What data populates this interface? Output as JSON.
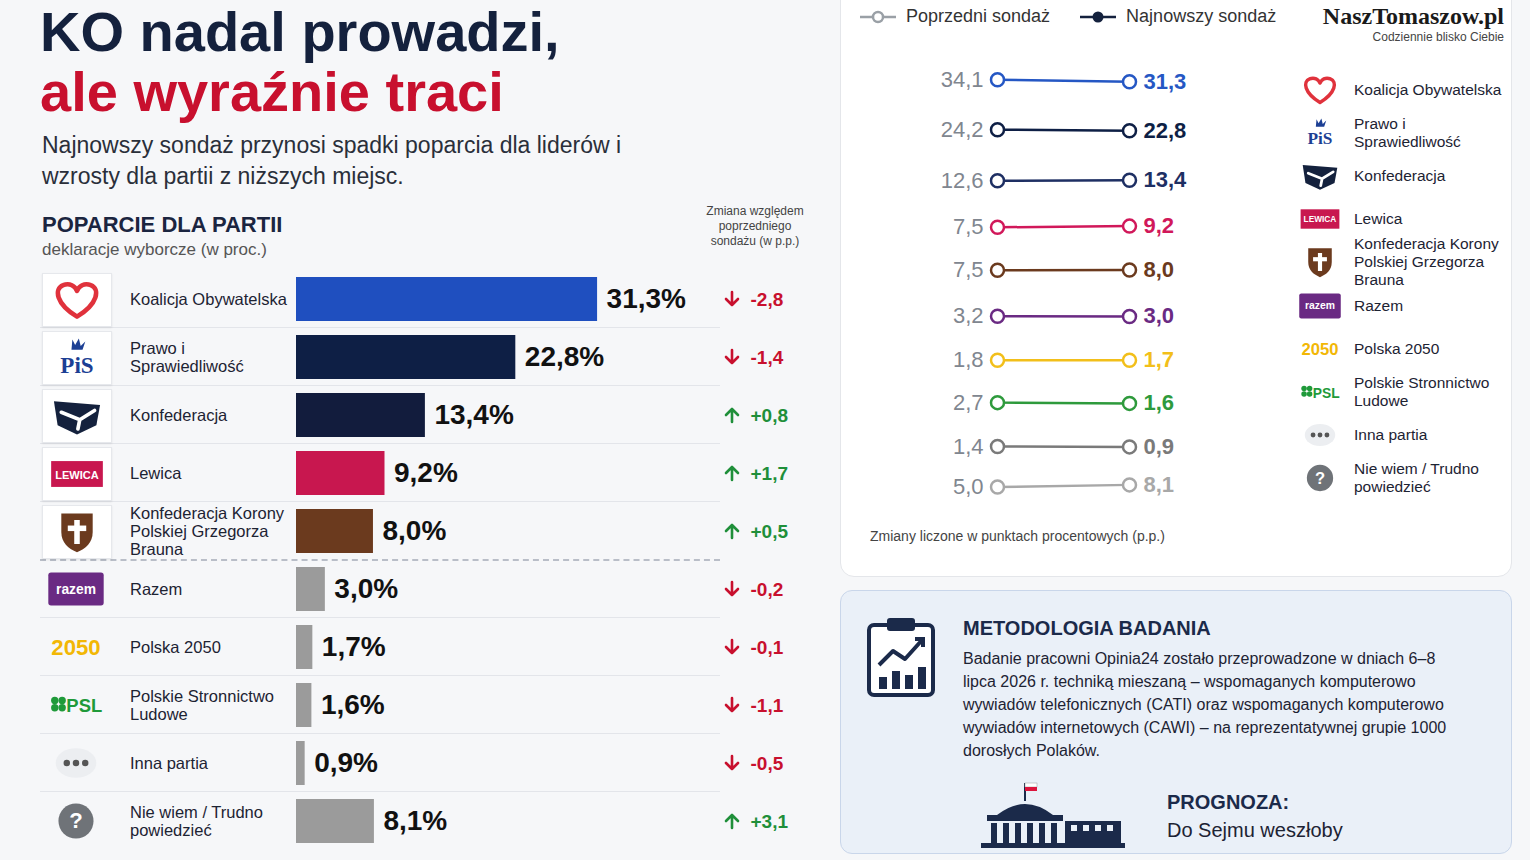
{
  "header": {
    "title_line1": "KO nadal prowadzi,",
    "title_line2": "ale wyraźnie traci",
    "subtitle": "Najnowszy sondaż przynosi spadki poparcia dla liderów i wzrosty dla partii z niższych miejsc."
  },
  "chart_data": [
    {
      "type": "bar",
      "title": "POPARCIE DLA PARTII",
      "subtitle": "deklaracje wyborcze (w proc.)",
      "orientation": "horizontal",
      "categories": [
        "Koalicja Obywatelska",
        "Prawo i Sprawiedliwość",
        "Konfederacja",
        "Lewica",
        "Konfederacja Korony Polskiej Grzegorza Brauna",
        "Razem",
        "Polska 2050",
        "Polskie Stronnictwo Ludowe",
        "Inna partia",
        "Nie wiem / Trudno powiedzieć"
      ],
      "icon_labels": [
        null,
        "PiS",
        null,
        "LEWICA",
        null,
        "razem",
        "2050",
        "PSL",
        null,
        "?"
      ],
      "values": [
        31.3,
        22.8,
        13.4,
        9.2,
        8.0,
        3.0,
        1.7,
        1.6,
        0.9,
        8.1
      ],
      "value_labels": [
        "31,3%",
        "22,8%",
        "13,4%",
        "9,2%",
        "8,0%",
        "3,0%",
        "1,7%",
        "1,6%",
        "0,9%",
        "8,1%"
      ],
      "colors": [
        "#1f4fbf",
        "#0e1f45",
        "#121c3d",
        "#c8174f",
        "#6b3a1e",
        "#9b9b9b",
        "#9b9b9b",
        "#9b9b9b",
        "#9b9b9b",
        "#9b9b9b"
      ],
      "change_title": "Zmiana względem poprzedniego sondażu (w p.p.)",
      "change": [
        -2.8,
        -1.4,
        0.8,
        1.7,
        0.5,
        -0.2,
        -0.1,
        -1.1,
        -0.5,
        3.1
      ],
      "change_labels": [
        "-2,8",
        "-1,4",
        "+0,8",
        "+1,7",
        "+0,5",
        "-0,2",
        "-0,1",
        "-1,1",
        "-0,5",
        "+3,1"
      ],
      "xlim": [
        0,
        42
      ],
      "data_labels": true,
      "tick_labels": "y",
      "grid": false
    },
    {
      "type": "line",
      "x": [
        "Poprzedni sondaż",
        "Najnowszy sondaż"
      ],
      "series": [
        {
          "name": "Koalicja Obywatelska",
          "color": "#2557c4",
          "values": [
            34.1,
            31.3
          ],
          "value_labels": [
            "34,1",
            "31,3"
          ]
        },
        {
          "name": "Prawo i Sprawiedliwość",
          "color": "#0e1f45",
          "values": [
            24.2,
            22.8
          ],
          "value_labels": [
            "24,2",
            "22,8"
          ]
        },
        {
          "name": "Konfederacja",
          "color": "#1e2f63",
          "values": [
            12.6,
            13.4
          ],
          "value_labels": [
            "12,6",
            "13,4"
          ]
        },
        {
          "name": "Lewica",
          "color": "#d1185a",
          "values": [
            7.5,
            9.2
          ],
          "value_labels": [
            "7,5",
            "9,2"
          ]
        },
        {
          "name": "Konfederacja Korony Polskiej Grzegorza Brauna",
          "color": "#6b3a1e",
          "values": [
            7.5,
            8.0
          ],
          "value_labels": [
            "7,5",
            "8,0"
          ]
        },
        {
          "name": "Razem",
          "color": "#6a2a83",
          "values": [
            3.2,
            3.0
          ],
          "value_labels": [
            "3,2",
            "3,0"
          ]
        },
        {
          "name": "Polska 2050",
          "color": "#f2bf1a",
          "values": [
            1.8,
            1.7
          ],
          "value_labels": [
            "1,8",
            "1,7"
          ]
        },
        {
          "name": "Polskie Stronnictwo Ludowe",
          "color": "#2e9a3c",
          "values": [
            2.7,
            1.6
          ],
          "value_labels": [
            "2,7",
            "1,6"
          ]
        },
        {
          "name": "Inna partia",
          "color": "#7a7a7a",
          "values": [
            1.4,
            0.9
          ],
          "value_labels": [
            "1,4",
            "0,9"
          ]
        },
        {
          "name": "Nie wiem / Trudno powiedzieć",
          "color": "#a8a8a8",
          "values": [
            5.0,
            8.1
          ],
          "value_labels": [
            "5,0",
            "8,1"
          ]
        }
      ],
      "ylim": [
        0,
        36
      ],
      "legend": "top",
      "marker": "circle",
      "data_labels": true,
      "tick_labels": false,
      "grid": false,
      "note": "Zmiany liczone w punktach procentowych (p.p.)"
    }
  ],
  "methodology": {
    "title": "METODOLOGIA BADANIA",
    "text": "Badanie pracowni Opinia24 zostało przeprowadzone w dniach 6–8 lipca 2026 r. techniką mieszaną – wspomaganych komputerowo wywiadów telefonicznych (CATI) oraz wspomaganych komputerowo wywiadów internetowych (CAWI) – na reprezentatywnej grupie 1000 dorosłych Polaków."
  },
  "prognosis": {
    "title": "PROGNOZA:",
    "text": "Do Sejmu weszłoby"
  },
  "watermark": {
    "name": "NaszTomaszow.pl",
    "slogan": "Codziennie blisko Ciebie"
  }
}
